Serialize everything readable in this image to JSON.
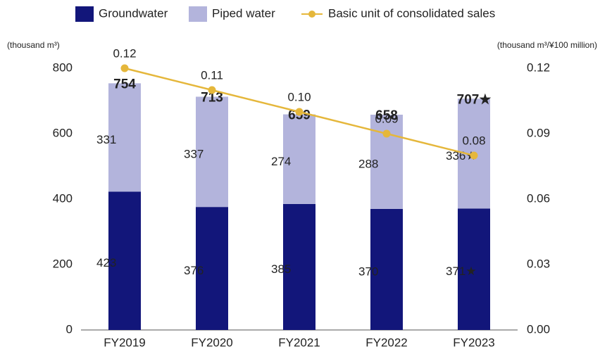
{
  "chart_data": {
    "type": "stacked_bar_line",
    "y_axis_label": "(thousand m³)",
    "y2_axis_label": "(thousand m³/¥100 million)",
    "categories": [
      "FY2019",
      "FY2020",
      "FY2021",
      "FY2022",
      "FY2023"
    ],
    "series": [
      {
        "name": "Groundwater",
        "color": "#12167a",
        "type": "bar",
        "values": [
          423,
          376,
          385,
          370,
          371
        ],
        "value_labels": [
          "423",
          "376",
          "385",
          "370",
          "371★"
        ]
      },
      {
        "name": "Piped water",
        "color": "#b3b4dc",
        "type": "bar",
        "values": [
          331,
          337,
          274,
          288,
          336
        ],
        "value_labels": [
          "331",
          "337",
          "274",
          "288",
          "336★"
        ]
      },
      {
        "name": "Basic unit of consolidated sales",
        "color": "#e5b73b",
        "type": "line",
        "axis": "y2",
        "values": [
          0.12,
          0.11,
          0.1,
          0.09,
          0.08
        ],
        "value_labels": [
          "0.12",
          "0.11",
          "0.10",
          "0.09",
          "0.08"
        ]
      }
    ],
    "totals": [
      754,
      713,
      659,
      658,
      707
    ],
    "total_labels": [
      "754",
      "713",
      "659",
      "658",
      "707★"
    ],
    "ylim": [
      0,
      800
    ],
    "yticks": [
      0,
      200,
      400,
      600,
      800
    ],
    "y2lim": [
      0,
      0.12
    ],
    "y2ticks": [
      {
        "value": 0,
        "label": "0.00"
      },
      0.03,
      0.06,
      0.09,
      0.12
    ],
    "legend": "top"
  }
}
